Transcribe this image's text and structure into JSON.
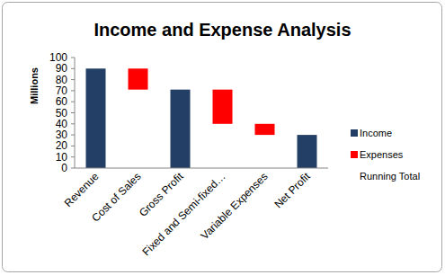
{
  "chart_data": {
    "type": "bar",
    "title": "Income and Expense Analysis",
    "y_label": "Millions",
    "categories": [
      "Revenue",
      "Cost of Sales",
      "Gross Profit",
      "Fixed and Semi-fixed…",
      "Variable Expenses",
      "Net Profit"
    ],
    "series": [
      {
        "name": "Income",
        "color": "#243f66",
        "values": [
          90,
          null,
          71,
          null,
          null,
          30
        ]
      },
      {
        "name": "Expenses",
        "color": "#ff0000",
        "values": [
          null,
          19,
          null,
          31,
          10,
          null
        ]
      },
      {
        "name": "Running Total",
        "values": [
          null,
          71,
          null,
          40,
          30,
          null
        ]
      }
    ],
    "stacked": true,
    "ylim": [
      0,
      100
    ],
    "yticks": [
      0,
      10,
      20,
      30,
      40,
      50,
      60,
      70,
      80,
      90,
      100
    ],
    "grid": false,
    "legend": "right"
  }
}
